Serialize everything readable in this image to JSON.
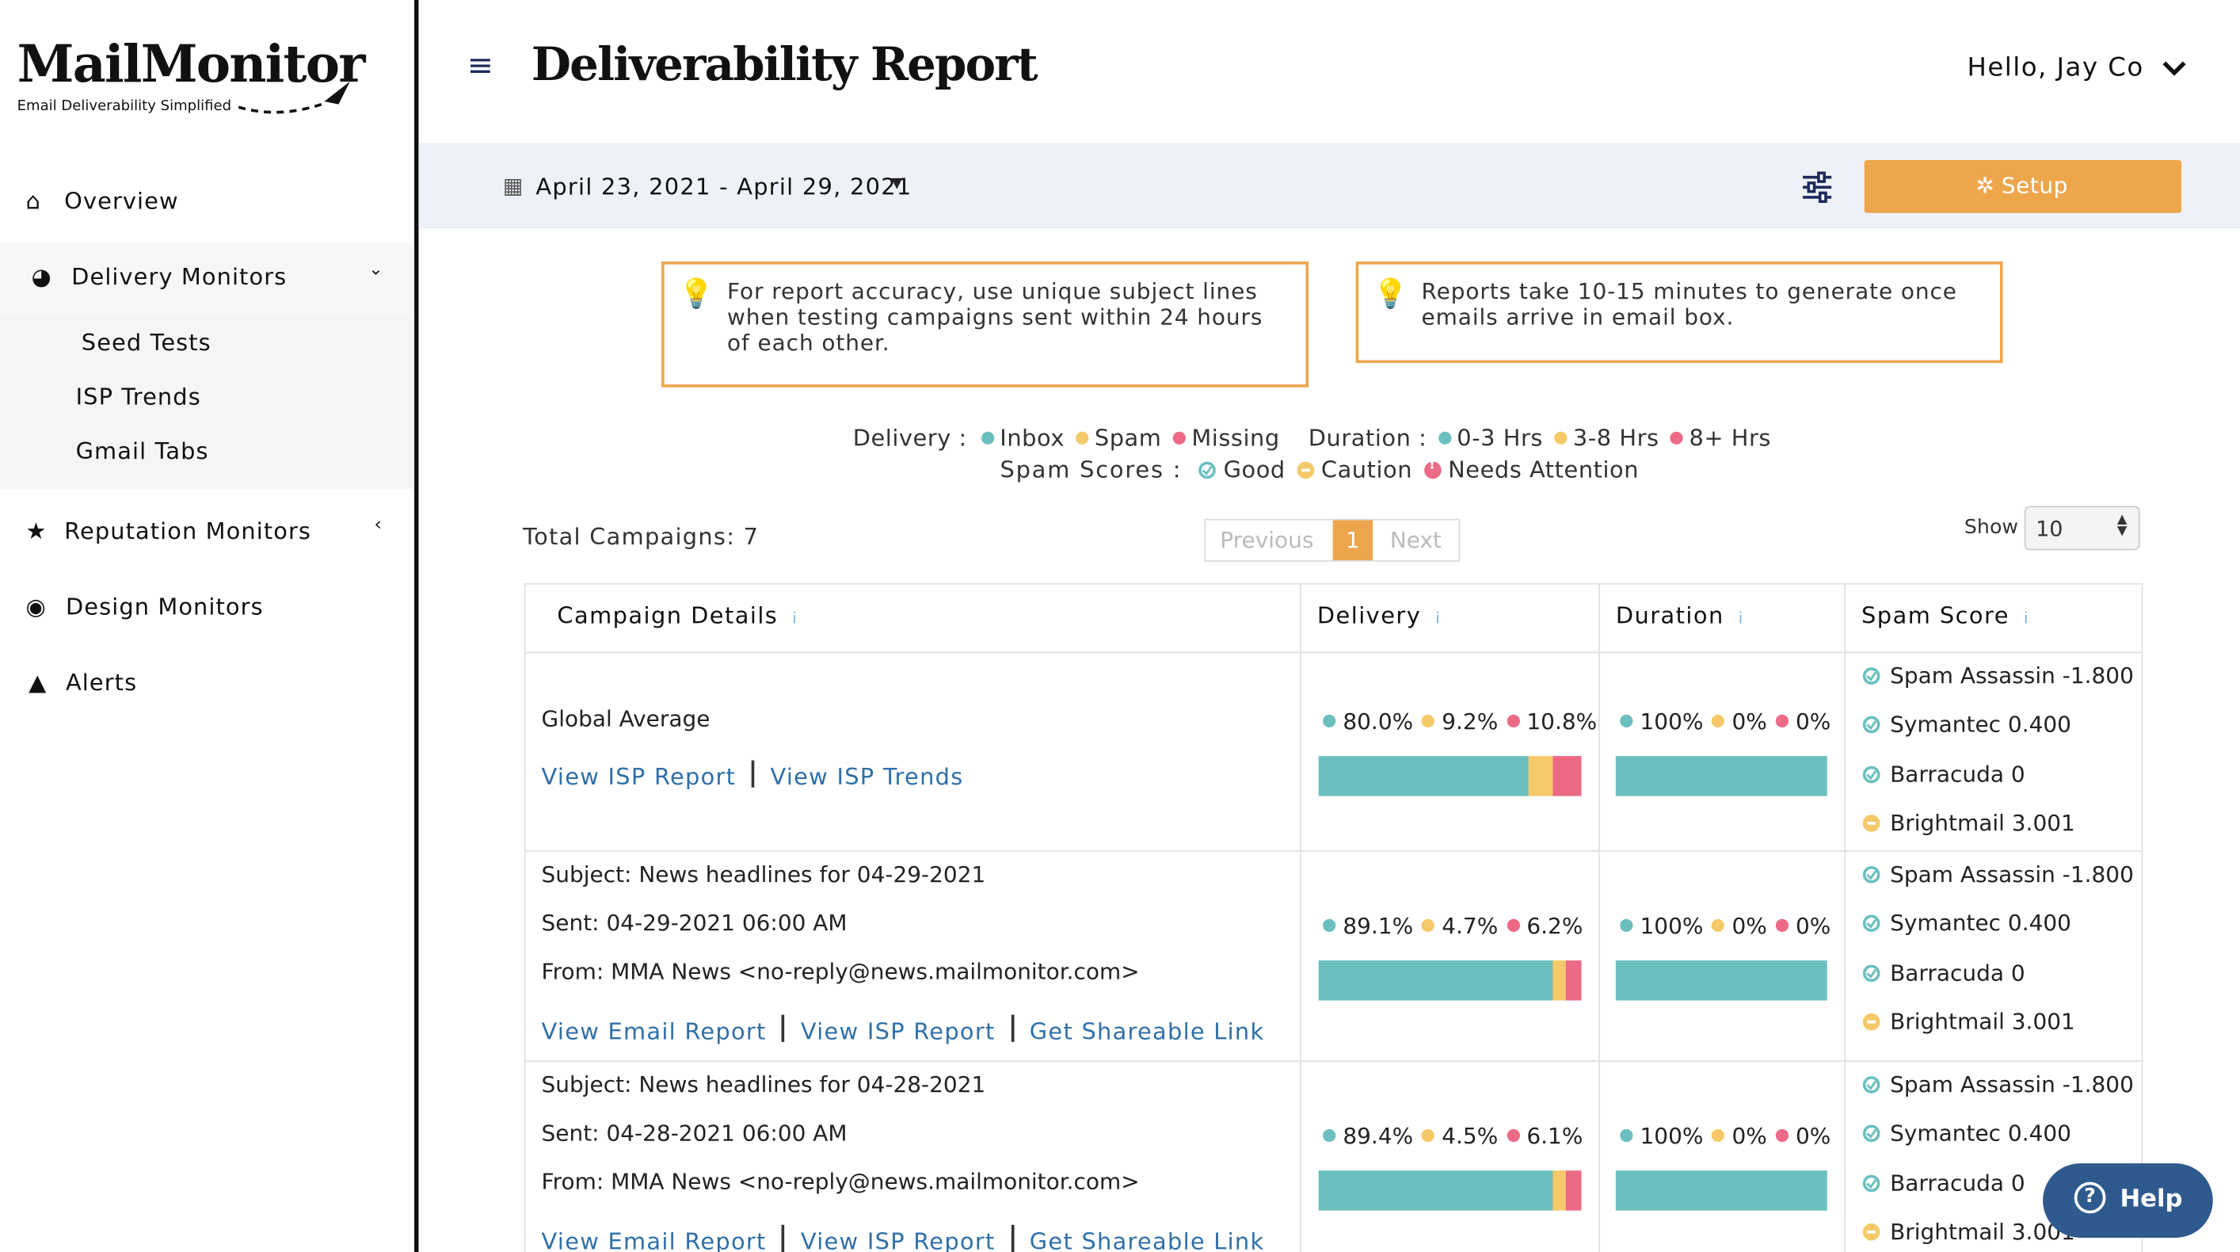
{
  "sidebar": {
    "logo": "MailMonitor",
    "tagline": "Email Deliverability Simplified",
    "nav": [
      "Overview",
      "Delivery Monitors",
      "Reputation Monitors",
      "Design Monitors",
      "Alerts"
    ],
    "submenu": [
      "Seed Tests",
      "ISP Trends",
      "Gmail Tabs"
    ]
  },
  "header": {
    "title": "Deliverability Report",
    "user": "Hello, Jay Co"
  },
  "toolbar": {
    "date_range": "April 23, 2021 - April 29, 2021",
    "setup": "Setup"
  },
  "tips": [
    "For report accuracy, use unique subject lines when testing campaigns sent within 24 hours of each other.",
    "Reports take 10-15 minutes to generate once emails arrive in email box."
  ],
  "legend": {
    "delivery_label": "Delivery :",
    "delivery": [
      "Inbox",
      "Spam",
      "Missing"
    ],
    "duration_label": "Duration :",
    "duration": [
      "0-3 Hrs",
      "3-8 Hrs",
      "8+ Hrs"
    ],
    "spam_label": "Spam Scores :",
    "spam": [
      "Good",
      "Caution",
      "Needs Attention"
    ]
  },
  "colors": [
    "#6cbfbf",
    "#f5c969",
    "#ec6a85"
  ],
  "summary": {
    "total": "Total Campaigns: 7",
    "previous": "Previous",
    "page": "1",
    "next": "Next",
    "show": "Show",
    "page_size": "10"
  },
  "table": {
    "headers": [
      "Campaign Details",
      "Delivery",
      "Duration",
      "Spam Score"
    ],
    "rows": [
      {
        "lines": [
          "Global Average"
        ],
        "links": [
          "View ISP Report",
          "View ISP Trends"
        ],
        "delivery": {
          "values": [
            80.0,
            9.2,
            10.8
          ],
          "value_labels": [
            "80.0%",
            "9.2%",
            "10.8%"
          ]
        },
        "duration": {
          "values": [
            100,
            0,
            0
          ],
          "value_labels": [
            "100%",
            "0%",
            "0%"
          ]
        },
        "spam": [
          {
            "text": "Spam Assassin -1.800",
            "status": "good"
          },
          {
            "text": "Symantec 0.400",
            "status": "good"
          },
          {
            "text": "Barracuda 0",
            "status": "good"
          },
          {
            "text": "Brightmail 3.001",
            "status": "caution"
          }
        ]
      },
      {
        "lines": [
          "Subject: News headlines for 04-29-2021",
          "Sent: 04-29-2021 06:00 AM",
          "From: MMA News <no-reply@news.mailmonitor.com>"
        ],
        "links": [
          "View Email Report",
          "View ISP Report",
          "Get Shareable Link"
        ],
        "delivery": {
          "values": [
            89.1,
            4.7,
            6.2
          ],
          "value_labels": [
            "89.1%",
            "4.7%",
            "6.2%"
          ]
        },
        "duration": {
          "values": [
            100,
            0,
            0
          ],
          "value_labels": [
            "100%",
            "0%",
            "0%"
          ]
        },
        "spam": [
          {
            "text": "Spam Assassin -1.800",
            "status": "good"
          },
          {
            "text": "Symantec 0.400",
            "status": "good"
          },
          {
            "text": "Barracuda 0",
            "status": "good"
          },
          {
            "text": "Brightmail 3.001",
            "status": "caution"
          }
        ]
      },
      {
        "lines": [
          "Subject: News headlines for 04-28-2021",
          "Sent: 04-28-2021 06:00 AM",
          "From: MMA News <no-reply@news.mailmonitor.com>"
        ],
        "links": [
          "View Email Report",
          "View ISP Report",
          "Get Shareable Link"
        ],
        "delivery": {
          "values": [
            89.4,
            4.5,
            6.1
          ],
          "value_labels": [
            "89.4%",
            "4.5%",
            "6.1%"
          ]
        },
        "duration": {
          "values": [
            100,
            0,
            0
          ],
          "value_labels": [
            "100%",
            "0%",
            "0%"
          ]
        },
        "spam": [
          {
            "text": "Spam Assassin -1.800",
            "status": "good"
          },
          {
            "text": "Symantec 0.400",
            "status": "good"
          },
          {
            "text": "Barracuda 0",
            "status": "good"
          },
          {
            "text": "Brightmail 3.001",
            "status": "caution"
          }
        ]
      }
    ]
  },
  "help": "Help"
}
